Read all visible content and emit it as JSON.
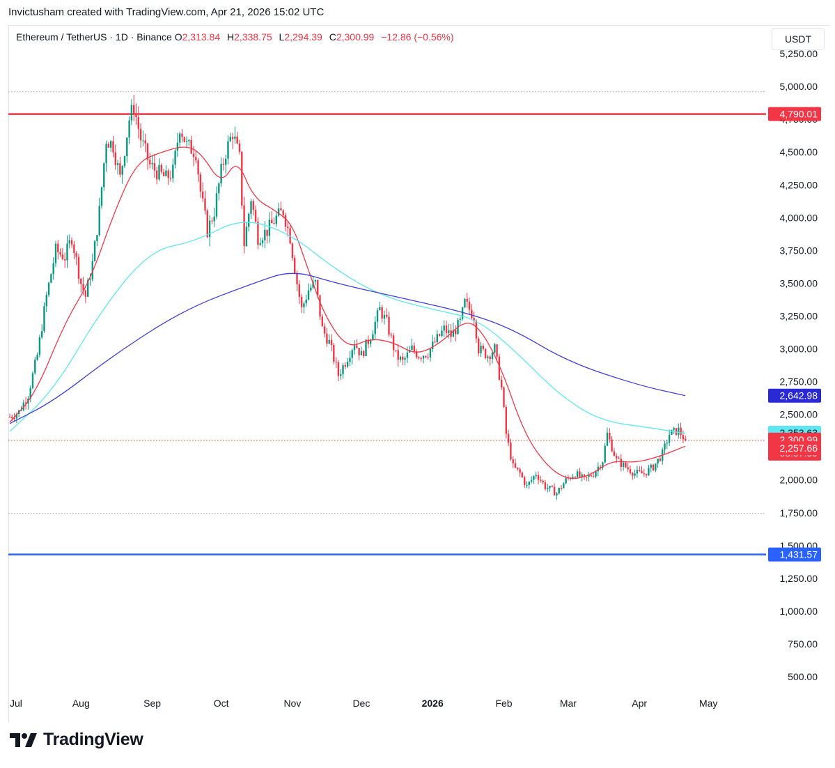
{
  "header": {
    "caption": "Invictusham created with TradingView.com, Apr 21, 2026 15:02 UTC"
  },
  "legend": {
    "symbol": "Ethereum / TetherUS · 1D · Binance",
    "o_key": "O",
    "o_val": "2,313.84",
    "h_key": "H",
    "h_val": "2,338.75",
    "l_key": "L",
    "l_val": "2,294.39",
    "c_key": "C",
    "c_val": "2,300.99",
    "change": "−12.86 (−0.56%)"
  },
  "unit_button": "USDT",
  "brand": {
    "name": "TradingView"
  },
  "colors": {
    "up": "#089981",
    "down": "#f23645",
    "sma_short": "#f23645",
    "sma_mid": "#5ee7f0",
    "sma_long": "#3f3fd6",
    "resistance": "#f23645",
    "support": "#2962ff"
  },
  "chart_data": {
    "type": "candlestick",
    "title": "",
    "timeframe": "1D",
    "exchange": "Binance",
    "xlabel": "",
    "ylabel": "",
    "x_ticks": [
      "Jul",
      "Aug",
      "Sep",
      "Oct",
      "Nov",
      "Dec",
      "2026",
      "Feb",
      "Mar",
      "Apr",
      "May"
    ],
    "y_ticks": [
      "500.00",
      "750.00",
      "1,000.00",
      "1,250.00",
      "1,500.00",
      "1,750.00",
      "2,000.00",
      "2,250.00",
      "2,500.00",
      "2,750.00",
      "3,000.00",
      "3,250.00",
      "3,500.00",
      "3,750.00",
      "4,000.00",
      "4,250.00",
      "4,500.00",
      "4,750.00",
      "5,000.00",
      "5,250.00"
    ],
    "y_tick_values": [
      500,
      750,
      1000,
      1250,
      1500,
      1750,
      2000,
      2250,
      2500,
      2750,
      3000,
      3250,
      3500,
      3750,
      4000,
      4250,
      4500,
      4750,
      5000,
      5250
    ],
    "ylim": [
      500,
      5250
    ],
    "x_range": [
      "2025-07-01",
      "2026-05-01"
    ],
    "grid": false,
    "price_path": [
      [
        "2025-07-01",
        2480
      ],
      [
        "2025-07-05",
        2520
      ],
      [
        "2025-07-09",
        2650
      ],
      [
        "2025-07-13",
        2950
      ],
      [
        "2025-07-17",
        3400
      ],
      [
        "2025-07-21",
        3750
      ],
      [
        "2025-07-25",
        3700
      ],
      [
        "2025-07-28",
        3850
      ],
      [
        "2025-08-01",
        3500
      ],
      [
        "2025-08-03",
        3400
      ],
      [
        "2025-08-06",
        3650
      ],
      [
        "2025-08-09",
        4050
      ],
      [
        "2025-08-12",
        4600
      ],
      [
        "2025-08-15",
        4550
      ],
      [
        "2025-08-18",
        4300
      ],
      [
        "2025-08-22",
        4750
      ],
      [
        "2025-08-24",
        4850
      ],
      [
        "2025-08-27",
        4600
      ],
      [
        "2025-08-31",
        4400
      ],
      [
        "2025-09-03",
        4350
      ],
      [
        "2025-09-07",
        4300
      ],
      [
        "2025-09-10",
        4350
      ],
      [
        "2025-09-13",
        4700
      ],
      [
        "2025-09-16",
        4550
      ],
      [
        "2025-09-20",
        4500
      ],
      [
        "2025-09-22",
        4200
      ],
      [
        "2025-09-25",
        3900
      ],
      [
        "2025-09-28",
        4050
      ],
      [
        "2025-10-01",
        4350
      ],
      [
        "2025-10-03",
        4500
      ],
      [
        "2025-10-06",
        4650
      ],
      [
        "2025-10-09",
        4450
      ],
      [
        "2025-10-11",
        3800
      ],
      [
        "2025-10-14",
        4150
      ],
      [
        "2025-10-17",
        3850
      ],
      [
        "2025-10-21",
        3900
      ],
      [
        "2025-10-25",
        4000
      ],
      [
        "2025-10-28",
        4050
      ],
      [
        "2025-10-31",
        3850
      ],
      [
        "2025-11-03",
        3500
      ],
      [
        "2025-11-05",
        3300
      ],
      [
        "2025-11-08",
        3450
      ],
      [
        "2025-11-11",
        3500
      ],
      [
        "2025-11-14",
        3150
      ],
      [
        "2025-11-17",
        3050
      ],
      [
        "2025-11-21",
        2800
      ],
      [
        "2025-11-24",
        2900
      ],
      [
        "2025-11-28",
        3050
      ],
      [
        "2025-12-01",
        2950
      ],
      [
        "2025-12-05",
        3100
      ],
      [
        "2025-12-09",
        3300
      ],
      [
        "2025-12-12",
        3200
      ],
      [
        "2025-12-16",
        2950
      ],
      [
        "2025-12-19",
        2900
      ],
      [
        "2025-12-23",
        3000
      ],
      [
        "2025-12-26",
        2950
      ],
      [
        "2025-12-30",
        2970
      ],
      [
        "2026-01-02",
        3050
      ],
      [
        "2026-01-06",
        3150
      ],
      [
        "2026-01-09",
        3100
      ],
      [
        "2026-01-13",
        3200
      ],
      [
        "2026-01-15",
        3350
      ],
      [
        "2026-01-19",
        3250
      ],
      [
        "2026-01-21",
        3000
      ],
      [
        "2026-01-25",
        2950
      ],
      [
        "2026-01-28",
        3000
      ],
      [
        "2026-01-31",
        2700
      ],
      [
        "2026-02-02",
        2350
      ],
      [
        "2026-02-05",
        2100
      ],
      [
        "2026-02-08",
        2050
      ],
      [
        "2026-02-11",
        1950
      ],
      [
        "2026-02-15",
        2050
      ],
      [
        "2026-02-19",
        1950
      ],
      [
        "2026-02-24",
        1900
      ],
      [
        "2026-02-28",
        2000
      ],
      [
        "2026-03-04",
        2050
      ],
      [
        "2026-03-08",
        2000
      ],
      [
        "2026-03-12",
        2050
      ],
      [
        "2026-03-16",
        2150
      ],
      [
        "2026-03-18",
        2350
      ],
      [
        "2026-03-22",
        2150
      ],
      [
        "2026-03-26",
        2100
      ],
      [
        "2026-03-30",
        2050
      ],
      [
        "2026-04-03",
        2050
      ],
      [
        "2026-04-07",
        2100
      ],
      [
        "2026-04-11",
        2200
      ],
      [
        "2026-04-14",
        2350
      ],
      [
        "2026-04-18",
        2380
      ],
      [
        "2026-04-21",
        2300.99
      ]
    ],
    "series": [
      {
        "kind": "moving_average",
        "color": "#f23645",
        "points": [
          [
            "2025-07-01",
            2440
          ],
          [
            "2025-07-12",
            2650
          ],
          [
            "2025-07-25",
            3200
          ],
          [
            "2025-08-05",
            3520
          ],
          [
            "2025-08-15",
            4020
          ],
          [
            "2025-08-25",
            4420
          ],
          [
            "2025-09-05",
            4500
          ],
          [
            "2025-09-15",
            4550
          ],
          [
            "2025-09-22",
            4500
          ],
          [
            "2025-10-01",
            4250
          ],
          [
            "2025-10-08",
            4450
          ],
          [
            "2025-10-15",
            4150
          ],
          [
            "2025-10-25",
            4050
          ],
          [
            "2025-11-01",
            3950
          ],
          [
            "2025-11-08",
            3600
          ],
          [
            "2025-11-15",
            3250
          ],
          [
            "2025-11-25",
            3000
          ],
          [
            "2025-12-05",
            3080
          ],
          [
            "2025-12-15",
            3050
          ],
          [
            "2025-12-25",
            2950
          ],
          [
            "2026-01-05",
            3050
          ],
          [
            "2026-01-15",
            3220
          ],
          [
            "2026-01-22",
            3150
          ],
          [
            "2026-01-31",
            2850
          ],
          [
            "2026-02-10",
            2350
          ],
          [
            "2026-02-20",
            2100
          ],
          [
            "2026-03-01",
            2000
          ],
          [
            "2026-03-10",
            2030
          ],
          [
            "2026-03-20",
            2150
          ],
          [
            "2026-03-30",
            2130
          ],
          [
            "2026-04-10",
            2180
          ],
          [
            "2026-04-21",
            2257.66
          ]
        ]
      },
      {
        "kind": "moving_average",
        "color": "#5ee7f0",
        "points": [
          [
            "2025-07-01",
            2370
          ],
          [
            "2025-07-20",
            2680
          ],
          [
            "2025-08-10",
            3300
          ],
          [
            "2025-08-31",
            3750
          ],
          [
            "2025-09-20",
            3820
          ],
          [
            "2025-10-10",
            4000
          ],
          [
            "2025-10-31",
            3880
          ],
          [
            "2025-11-20",
            3600
          ],
          [
            "2025-12-10",
            3400
          ],
          [
            "2026-01-01",
            3300
          ],
          [
            "2026-01-20",
            3230
          ],
          [
            "2026-02-05",
            3000
          ],
          [
            "2026-02-25",
            2650
          ],
          [
            "2026-03-15",
            2450
          ],
          [
            "2026-04-05",
            2400
          ],
          [
            "2026-04-21",
            2353.63
          ]
        ]
      },
      {
        "kind": "moving_average",
        "color": "#3f3fd6",
        "points": [
          [
            "2025-07-01",
            2430
          ],
          [
            "2025-07-20",
            2600
          ],
          [
            "2025-08-15",
            2950
          ],
          [
            "2025-09-15",
            3300
          ],
          [
            "2025-10-15",
            3500
          ],
          [
            "2025-11-01",
            3600
          ],
          [
            "2025-11-20",
            3500
          ],
          [
            "2025-12-15",
            3400
          ],
          [
            "2026-01-15",
            3280
          ],
          [
            "2026-02-05",
            3150
          ],
          [
            "2026-03-01",
            2900
          ],
          [
            "2026-04-01",
            2720
          ],
          [
            "2026-04-21",
            2642.98
          ]
        ]
      }
    ],
    "horizontal_lines": [
      {
        "value": 4790.01,
        "label": "4,790.01",
        "color": "#f23645",
        "style": "solid"
      },
      {
        "value": 1431.57,
        "label": "1,431.57",
        "color": "#2962ff",
        "style": "solid"
      },
      {
        "value": 4960,
        "style": "dotted",
        "color": "#9aa0aa"
      },
      {
        "value": 1745,
        "style": "dotted",
        "color": "#9aa0aa"
      },
      {
        "value": 2300.99,
        "style": "dotted",
        "color": "#f23645"
      }
    ],
    "price_labels": [
      {
        "value": 2642.98,
        "label": "2,642.98",
        "bg": "#2929d6",
        "fg": "#ffffff"
      },
      {
        "value": 2353.63,
        "label": "2,353.63",
        "bg": "#5ee7f0",
        "fg": "#131722"
      },
      {
        "value": 2300.99,
        "label": "2,300.99",
        "sub": "08:57:39",
        "bg": "#f23645",
        "fg": "#ffffff"
      },
      {
        "value": 2257.66,
        "label": "2,257.66",
        "bg": "#f23645",
        "fg": "#ffffff"
      }
    ],
    "last_close": 2300.99,
    "countdown": "08:57:39"
  }
}
